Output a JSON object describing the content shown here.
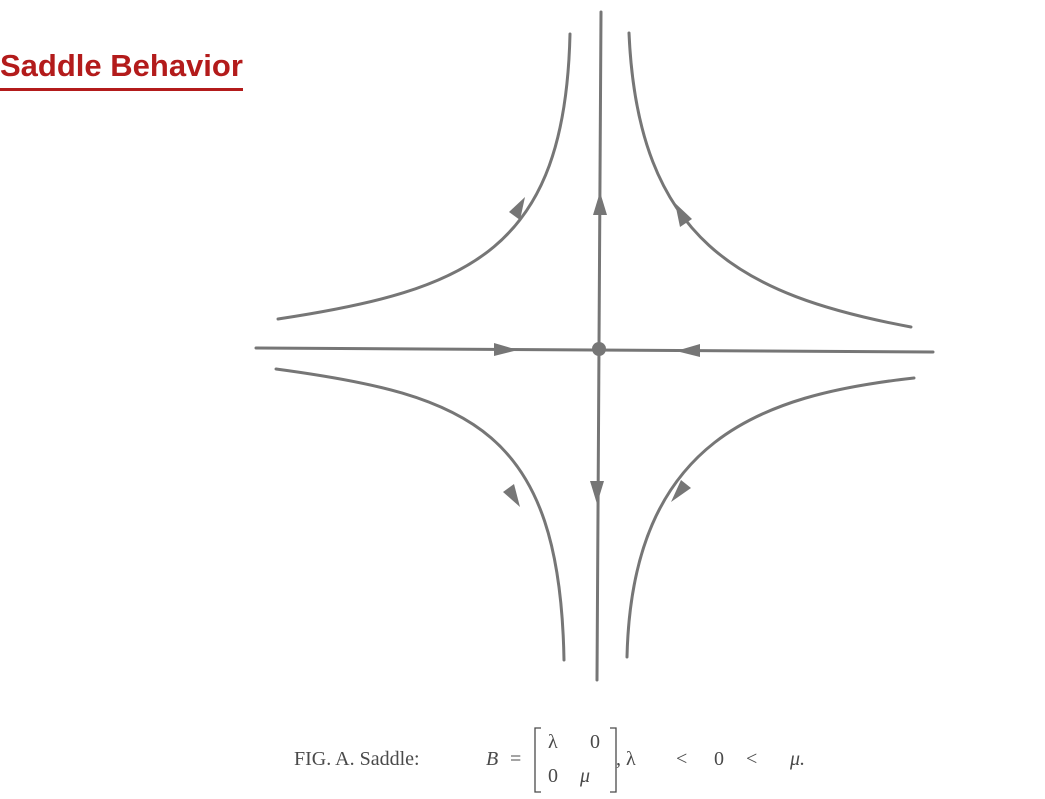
{
  "title": "Saddle Behavior",
  "caption": {
    "prefix": "FIG. A. Saddle:",
    "matrix_symbol": "B",
    "equals": "=",
    "matrix": {
      "row1": [
        "λ",
        "0"
      ],
      "row2": [
        "0",
        "μ"
      ]
    },
    "condition_lhs": ", λ",
    "lt1": "<",
    "zero": "0",
    "lt2": "<",
    "condition_rhs": "μ."
  },
  "colors": {
    "title": "#b31b1b",
    "curves": "#767676",
    "caption": "#4a4a4a"
  }
}
